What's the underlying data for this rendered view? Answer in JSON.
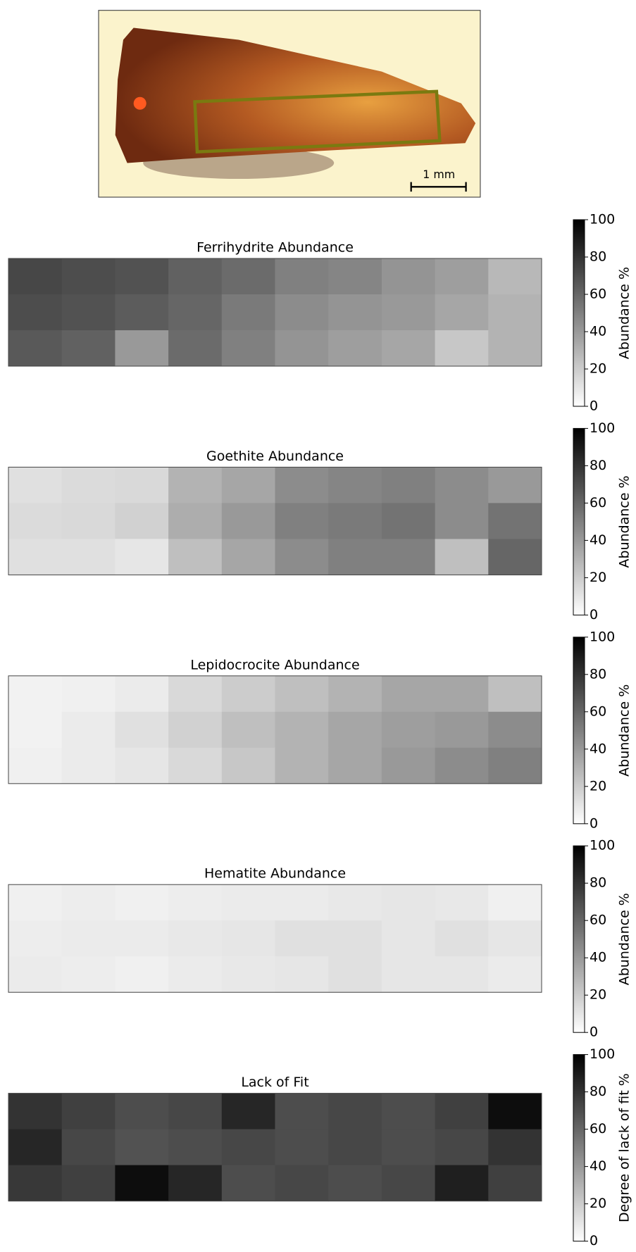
{
  "figure_image": {
    "scale_label": "1 mm"
  },
  "chart_data": [
    {
      "type": "heatmap",
      "title": "Ferrihydrite Abundance",
      "colormap": "gray_r",
      "colorbar_label": "Abundance %",
      "z": [
        [
          72,
          70,
          68,
          62,
          58,
          50,
          48,
          42,
          38,
          28
        ],
        [
          70,
          68,
          64,
          60,
          52,
          45,
          42,
          40,
          35,
          30
        ],
        [
          65,
          62,
          40,
          58,
          50,
          42,
          38,
          35,
          22,
          30
        ]
      ],
      "zlim": [
        0,
        100
      ],
      "zticks": [
        0,
        20,
        40,
        60,
        80,
        100
      ]
    },
    {
      "type": "heatmap",
      "title": "Goethite Abundance",
      "colormap": "gray_r",
      "colorbar_label": "Abundance %",
      "z": [
        [
          12,
          14,
          15,
          30,
          35,
          45,
          48,
          50,
          45,
          40
        ],
        [
          14,
          15,
          18,
          32,
          40,
          50,
          52,
          55,
          45,
          55
        ],
        [
          12,
          12,
          10,
          25,
          35,
          45,
          50,
          50,
          25,
          60
        ]
      ],
      "zlim": [
        0,
        100
      ],
      "zticks": [
        0,
        20,
        40,
        60,
        80,
        100
      ]
    },
    {
      "type": "heatmap",
      "title": "Lepidocrocite Abundance",
      "colormap": "gray_r",
      "colorbar_label": "Abundance %",
      "z": [
        [
          5,
          6,
          8,
          15,
          20,
          25,
          30,
          35,
          35,
          25
        ],
        [
          5,
          8,
          12,
          18,
          25,
          30,
          35,
          38,
          40,
          45
        ],
        [
          6,
          8,
          10,
          15,
          22,
          30,
          35,
          40,
          45,
          50
        ]
      ],
      "zlim": [
        0,
        100
      ],
      "zticks": [
        0,
        20,
        40,
        60,
        80,
        100
      ]
    },
    {
      "type": "heatmap",
      "title": "Hematite Abundance",
      "colormap": "gray_r",
      "colorbar_label": "Abundance %",
      "z": [
        [
          6,
          7,
          6,
          7,
          8,
          8,
          9,
          10,
          9,
          6
        ],
        [
          7,
          8,
          8,
          9,
          10,
          12,
          12,
          10,
          12,
          10
        ],
        [
          8,
          7,
          6,
          8,
          9,
          10,
          12,
          10,
          10,
          8
        ]
      ],
      "zlim": [
        0,
        100
      ],
      "zticks": [
        0,
        20,
        40,
        60,
        80,
        100
      ]
    },
    {
      "type": "heatmap",
      "title": "Lack of Fit",
      "colormap": "gray_r",
      "colorbar_label": "Degree of lack of fit %",
      "z": [
        [
          80,
          75,
          70,
          72,
          85,
          70,
          72,
          70,
          75,
          95
        ],
        [
          85,
          72,
          68,
          70,
          72,
          70,
          72,
          70,
          72,
          80
        ],
        [
          78,
          75,
          95,
          85,
          70,
          72,
          70,
          72,
          88,
          75
        ]
      ],
      "zlim": [
        0,
        100
      ],
      "zticks": [
        0,
        20,
        40,
        60,
        80,
        100
      ]
    }
  ]
}
